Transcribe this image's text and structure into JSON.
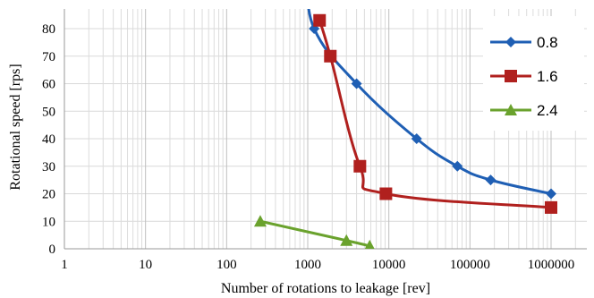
{
  "chart_data": {
    "type": "line",
    "title": "",
    "xlabel": "Number of rotations to leakage [rev]",
    "ylabel": "Rotational speed [rps]",
    "x_scale": "log",
    "xlim": [
      1,
      1000000
    ],
    "ylim": [
      0,
      85
    ],
    "x_ticks": [
      "1",
      "10",
      "100",
      "1000",
      "10000",
      "100000",
      "1000000"
    ],
    "y_ticks": [
      "0",
      "10",
      "20",
      "30",
      "40",
      "50",
      "60",
      "70",
      "80"
    ],
    "grid": "vertical minor and major lines (log x), horizontal major lines",
    "legend_position": "right",
    "series": [
      {
        "name": "0.8",
        "color": "#1f5fb4",
        "marker": "diamond",
        "x": [
          1000,
          1200,
          4000,
          22000,
          70000,
          180000,
          1000000
        ],
        "y": [
          100,
          80,
          60,
          40,
          30,
          25,
          20
        ]
      },
      {
        "name": "1.6",
        "color": "#b0201e",
        "marker": "square",
        "x": [
          1400,
          1900,
          4400,
          9200,
          1000000
        ],
        "y": [
          83,
          70,
          30,
          20,
          15
        ]
      },
      {
        "name": "2.4",
        "color": "#6aa22d",
        "marker": "triangle",
        "x": [
          260,
          3000,
          5800
        ],
        "y": [
          10,
          3,
          1
        ]
      }
    ]
  }
}
